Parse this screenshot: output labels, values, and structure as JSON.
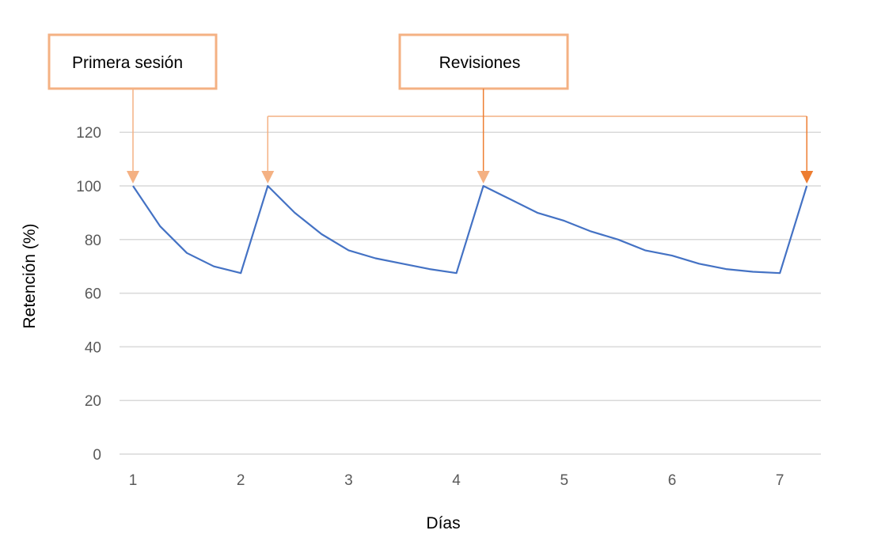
{
  "chart_data": {
    "type": "line",
    "title": "",
    "xlabel": "Días",
    "ylabel": "Retención (%)",
    "ylim": [
      0,
      130
    ],
    "yticks": [
      0,
      20,
      40,
      60,
      80,
      100,
      120
    ],
    "xticks": [
      1,
      2,
      3,
      4,
      5,
      6,
      7
    ],
    "grid": true,
    "series": [
      {
        "color": "#4472C4",
        "points": [
          [
            1.0,
            100
          ],
          [
            1.25,
            85
          ],
          [
            1.5,
            75
          ],
          [
            1.75,
            70
          ],
          [
            2.0,
            67.5
          ],
          [
            2.25,
            100
          ],
          [
            2.5,
            90
          ],
          [
            2.75,
            82
          ],
          [
            3.0,
            76
          ],
          [
            3.25,
            73
          ],
          [
            3.5,
            71
          ],
          [
            3.75,
            69
          ],
          [
            4.0,
            67.5
          ],
          [
            4.25,
            100
          ],
          [
            4.5,
            95
          ],
          [
            4.75,
            90
          ],
          [
            5.0,
            87
          ],
          [
            5.25,
            83
          ],
          [
            5.5,
            80
          ],
          [
            5.75,
            76
          ],
          [
            6.0,
            74
          ],
          [
            6.25,
            71
          ],
          [
            6.5,
            69
          ],
          [
            6.75,
            68
          ],
          [
            7.0,
            67.5
          ],
          [
            7.25,
            100
          ]
        ]
      }
    ],
    "annotations": [
      {
        "text": "Primera sesión",
        "color": "#F4B183",
        "targets_x": [
          1.0
        ]
      },
      {
        "text": "Revisiones",
        "color": "#F4B183",
        "targets_x": [
          2.25,
          4.25,
          7.25
        ]
      }
    ],
    "arrow_colors": {
      "light": "#F4B183",
      "dark": "#ED7D31"
    }
  }
}
